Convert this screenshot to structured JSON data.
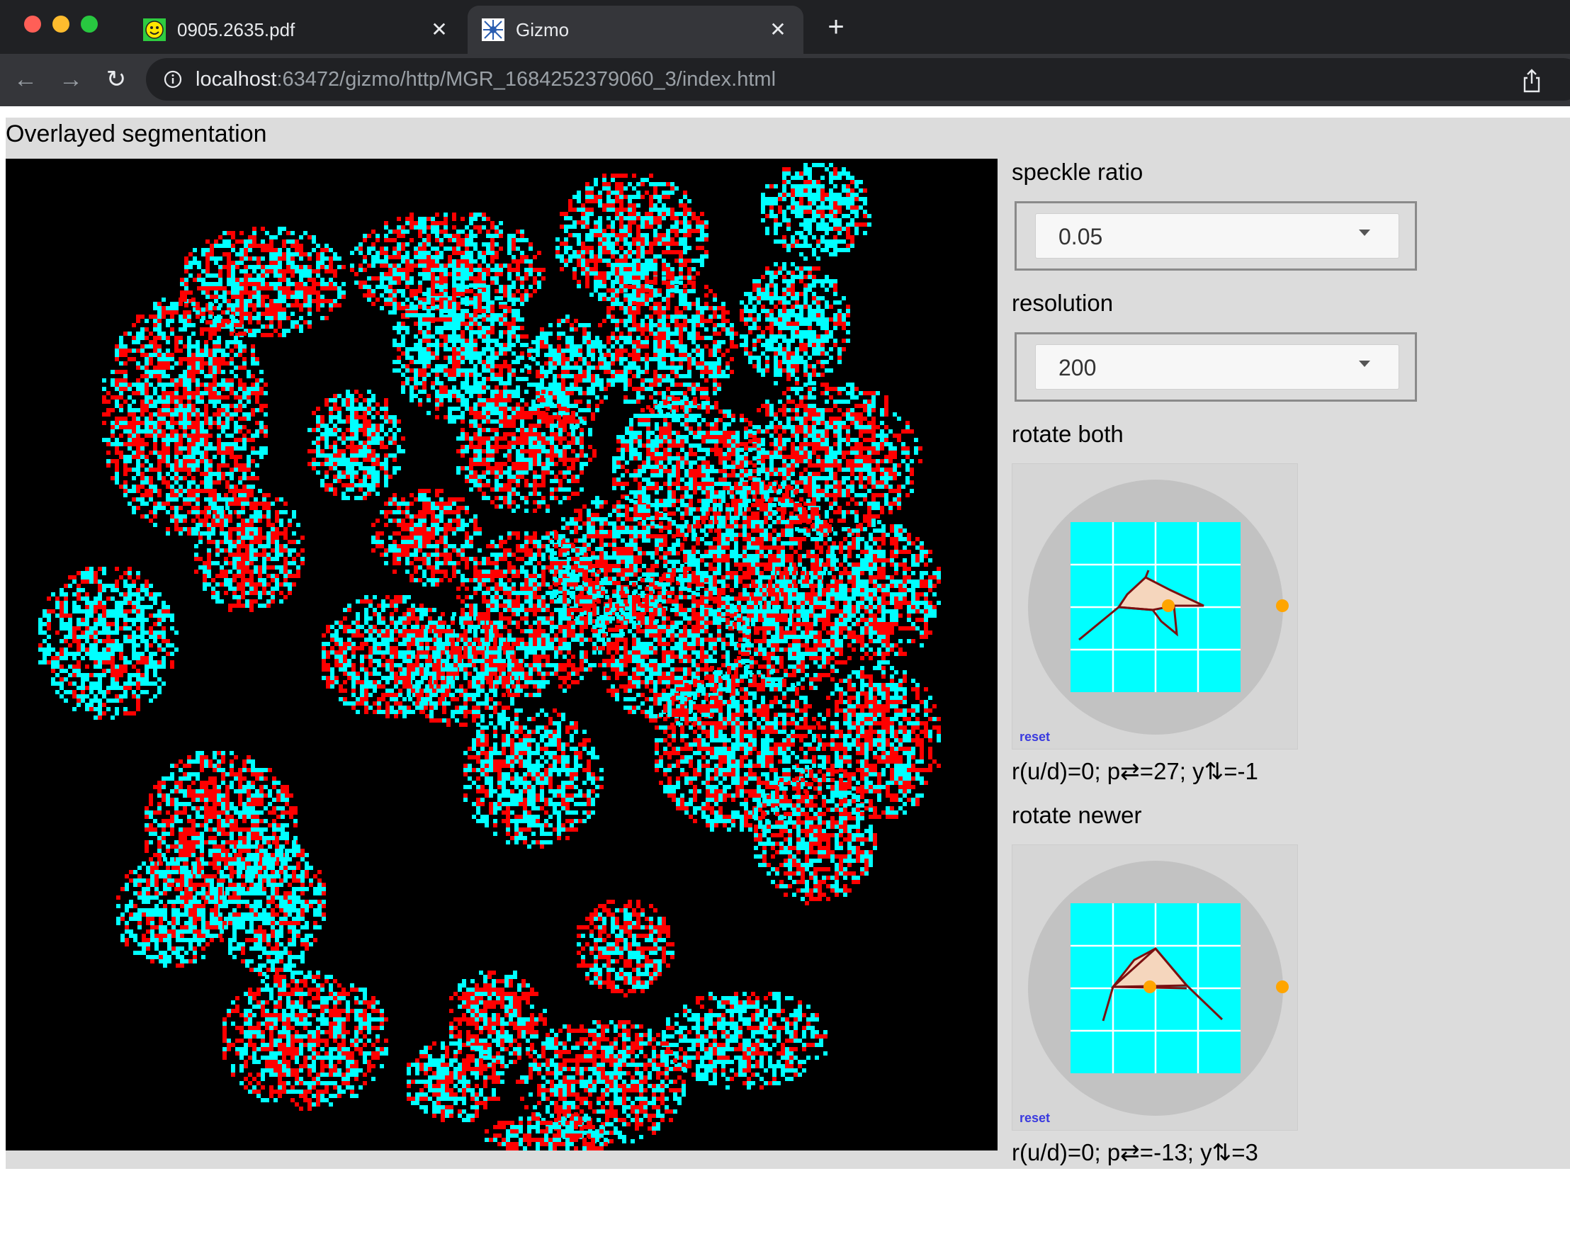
{
  "browser": {
    "tabs": [
      {
        "title": "0905.2635.pdf",
        "active": false,
        "favicon": "smiley-face-icon"
      },
      {
        "title": "Gizmo",
        "active": true,
        "favicon": "gizmo-star-icon"
      }
    ],
    "url_host": "localhost",
    "url_path": ":63472/gizmo/http/MGR_1684252379060_3/index.html",
    "icons": {
      "back": "arrow-left-icon",
      "forward": "arrow-right-icon",
      "reload": "reload-icon",
      "site_info": "info-icon",
      "share": "share-icon",
      "new_tab": "plus-icon"
    }
  },
  "page": {
    "title": "Overlayed segmentation",
    "colors": {
      "older": "#ff0000",
      "newer": "#00ffff",
      "background": "#000000"
    }
  },
  "controls": {
    "speckle_ratio": {
      "label": "speckle ratio",
      "value": "0.05"
    },
    "resolution": {
      "label": "resolution",
      "value": "200"
    },
    "rotate_both": {
      "label": "rotate both",
      "reset": "reset",
      "readout": "r(u/d)=0; p⇄=27; y⇅=-1"
    },
    "rotate_newer": {
      "label": "rotate newer",
      "reset": "reset",
      "readout": "r(u/d)=0; p⇄=-13; y⇅=3"
    }
  }
}
